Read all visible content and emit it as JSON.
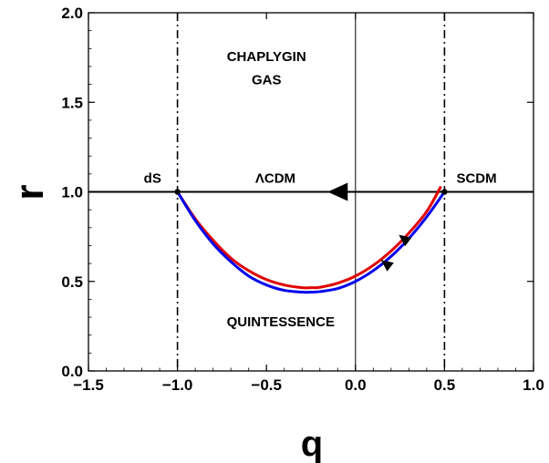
{
  "chart_data": {
    "type": "line",
    "xlabel": "q",
    "ylabel": "r",
    "xlim": [
      -1.5,
      1.0
    ],
    "ylim": [
      0.0,
      2.0
    ],
    "xticks": [
      -1.5,
      -1.0,
      -0.5,
      0.0,
      0.5,
      1.0
    ],
    "yticks": [
      0.0,
      0.5,
      1.0,
      1.5,
      2.0
    ],
    "xtick_labels": [
      "−1.5",
      "−1.0",
      "−0.5",
      "0.0",
      "0.5",
      "1.0"
    ],
    "ytick_labels": [
      "0.0",
      "0.5",
      "1.0",
      "1.5",
      "2.0"
    ],
    "grid": false,
    "series": [
      {
        "color": "#e00000",
        "x": [
          -1.0,
          -0.9,
          -0.8,
          -0.7,
          -0.6,
          -0.5,
          -0.4,
          -0.3,
          -0.25,
          -0.2,
          -0.1,
          0.0,
          0.1,
          0.2,
          0.3,
          0.4,
          0.48
        ],
        "y": [
          1.0,
          0.85,
          0.73,
          0.63,
          0.56,
          0.51,
          0.48,
          0.465,
          0.465,
          0.467,
          0.49,
          0.53,
          0.59,
          0.67,
          0.77,
          0.89,
          1.03
        ]
      },
      {
        "color": "#0000ee",
        "x": [
          -1.0,
          -0.9,
          -0.8,
          -0.7,
          -0.6,
          -0.5,
          -0.4,
          -0.3,
          -0.25,
          -0.2,
          -0.1,
          0.0,
          0.1,
          0.2,
          0.3,
          0.4,
          0.5
        ],
        "y": [
          1.0,
          0.84,
          0.71,
          0.61,
          0.53,
          0.48,
          0.45,
          0.44,
          0.44,
          0.443,
          0.46,
          0.5,
          0.56,
          0.64,
          0.74,
          0.86,
          1.0
        ]
      }
    ],
    "reference_lines": {
      "horizontal_solid": [
        1.0
      ],
      "vertical_solid": [
        0.0
      ],
      "vertical_dashdot": [
        -1.0,
        0.5
      ]
    },
    "points": [
      {
        "x": -1.0,
        "y": 1.0
      },
      {
        "x": 0.5,
        "y": 1.0
      }
    ],
    "arrows": [
      {
        "x": -0.1,
        "y": 1.0,
        "direction": "left",
        "size": "large"
      },
      {
        "x": 0.27,
        "y": 0.74,
        "direction": "down-left",
        "size": "small"
      },
      {
        "x": 0.17,
        "y": 0.6,
        "direction": "down-left",
        "size": "small"
      }
    ],
    "annotations": [
      {
        "id": "chaplygin1",
        "text": "CHAPLYGIN",
        "x": -0.5,
        "y": 1.73
      },
      {
        "id": "chaplygin2",
        "text": "GAS",
        "x": -0.5,
        "y": 1.6
      },
      {
        "id": "quintessence",
        "text": "QUINTESSENCE",
        "x": -0.42,
        "y": 0.25
      },
      {
        "id": "ds",
        "text": "dS",
        "x": -1.14,
        "y": 1.05
      },
      {
        "id": "lcdm",
        "text": "ΛCDM",
        "x": -0.45,
        "y": 1.05
      },
      {
        "id": "scdm",
        "text": "SCDM",
        "x": 0.68,
        "y": 1.05
      }
    ]
  }
}
